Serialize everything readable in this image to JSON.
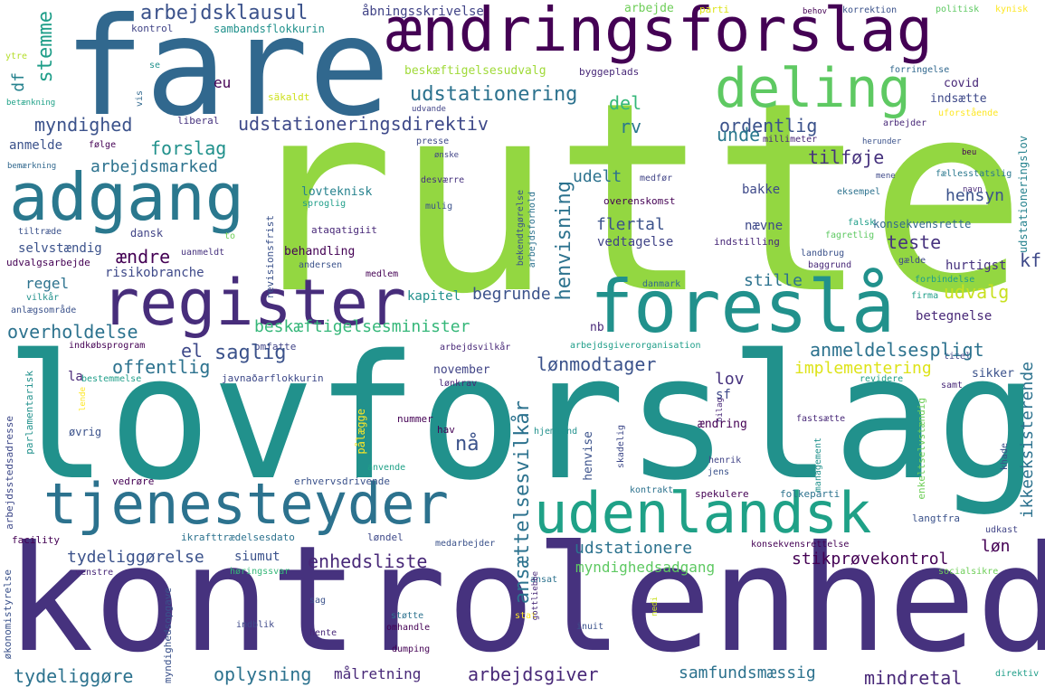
{
  "words": [
    {
      "text": "rutte",
      "color": "#93d741"
    },
    {
      "text": "lovforslag",
      "color": "#21918c"
    },
    {
      "text": "kontrolenhed",
      "color": "#46327e"
    },
    {
      "text": "fare",
      "color": "#31688e"
    },
    {
      "text": "ændringsforslag",
      "color": "#440154"
    },
    {
      "text": "deling",
      "color": "#5ec962"
    },
    {
      "text": "adgang",
      "color": "#2a788e"
    },
    {
      "text": "register",
      "color": "#472d7b"
    },
    {
      "text": "foreslå",
      "color": "#21918c"
    },
    {
      "text": "tjenesteyder",
      "color": "#2c728e"
    },
    {
      "text": "udenlandsk",
      "color": "#1fa187"
    },
    {
      "text": "arbejdsklausul",
      "color": "#3b528b"
    },
    {
      "text": "åbningsskrivelse",
      "color": "#414487"
    },
    {
      "text": "arbejde",
      "color": "#6ece58"
    },
    {
      "text": "parti",
      "color": "#dde318"
    },
    {
      "text": "behov",
      "color": "#440154"
    },
    {
      "text": "korrektion",
      "color": "#3b528b"
    },
    {
      "text": "politisk",
      "color": "#5ec962"
    },
    {
      "text": "kynisk",
      "color": "#fde725"
    },
    {
      "text": "kontrol",
      "color": "#414487"
    },
    {
      "text": "sambandsflokkurin",
      "color": "#21918c"
    },
    {
      "text": "stemme",
      "color": "#1f9e89"
    },
    {
      "text": "beskæftigelsesudvalg",
      "color": "#a0da39"
    },
    {
      "text": "byggeplads",
      "color": "#482878"
    },
    {
      "text": "forringelse",
      "color": "#31688e"
    },
    {
      "text": "ytre",
      "color": "#b5de2b"
    },
    {
      "text": "se",
      "color": "#21918c"
    },
    {
      "text": "eu",
      "color": "#440154"
    },
    {
      "text": "udstationering",
      "color": "#2c728e"
    },
    {
      "text": "covid",
      "color": "#482878"
    },
    {
      "text": "df",
      "color": "#26828e"
    },
    {
      "text": "myndighed",
      "color": "#3b528b"
    },
    {
      "text": "del",
      "color": "#35b779"
    },
    {
      "text": "indsætte",
      "color": "#3e4989"
    },
    {
      "text": "betænkning",
      "color": "#1fa187"
    },
    {
      "text": "vis",
      "color": "#31688e"
    },
    {
      "text": "säkaldt",
      "color": "#cde11d"
    },
    {
      "text": "udvande",
      "color": "#414487"
    },
    {
      "text": "uforstående",
      "color": "#fde725"
    },
    {
      "text": "liberal",
      "color": "#46327e"
    },
    {
      "text": "udstationeringsdirektiv",
      "color": "#3e4989"
    },
    {
      "text": "ordentlig",
      "color": "#3b528b"
    },
    {
      "text": "arbejder",
      "color": "#482878"
    },
    {
      "text": "rv",
      "color": "#2a788e"
    },
    {
      "text": "anmelde",
      "color": "#3b528b"
    },
    {
      "text": "følge",
      "color": "#440154"
    },
    {
      "text": "forslag",
      "color": "#21918c"
    },
    {
      "text": "presse",
      "color": "#3e4989"
    },
    {
      "text": "ønske",
      "color": "#414487"
    },
    {
      "text": "millimeter",
      "color": "#482878"
    },
    {
      "text": "unde",
      "color": "#2a788e"
    },
    {
      "text": "herunder",
      "color": "#3b528b"
    },
    {
      "text": "bemærkning",
      "color": "#31688e"
    },
    {
      "text": "udstationeringslov",
      "color": "#26828e"
    },
    {
      "text": "tilføje",
      "color": "#46327e"
    },
    {
      "text": "arbejdsmarked",
      "color": "#2c728e"
    },
    {
      "text": "beu",
      "color": "#440154"
    },
    {
      "text": "fællesstatslig",
      "color": "#2a788e"
    },
    {
      "text": "udelt",
      "color": "#2c728e"
    },
    {
      "text": "medfør",
      "color": "#414487"
    },
    {
      "text": "desværre",
      "color": "#46327e"
    },
    {
      "text": "mene",
      "color": "#3e4989"
    },
    {
      "text": "navn",
      "color": "#482878"
    },
    {
      "text": "lovteknisk",
      "color": "#26828e"
    },
    {
      "text": "bakke",
      "color": "#3e4989"
    },
    {
      "text": "eksempel",
      "color": "#2c728e"
    },
    {
      "text": "sproglig",
      "color": "#1f9e89"
    },
    {
      "text": "mulig",
      "color": "#3b528b"
    },
    {
      "text": "overenskomst",
      "color": "#440154"
    },
    {
      "text": "hensyn",
      "color": "#3b528b"
    },
    {
      "text": "tiltræde",
      "color": "#3b528b"
    },
    {
      "text": "ataqatigiit",
      "color": "#482878"
    },
    {
      "text": "konsekvensrette",
      "color": "#31688e"
    },
    {
      "text": "selvstændig",
      "color": "#3b528b"
    },
    {
      "text": "dansk",
      "color": "#414487"
    },
    {
      "text": "flertal",
      "color": "#3b528b"
    },
    {
      "text": "falsk",
      "color": "#1f9e89"
    },
    {
      "text": "fagretlig",
      "color": "#5ec962"
    },
    {
      "text": "to",
      "color": "#6ece58"
    },
    {
      "text": "udvalgsarbejde",
      "color": "#440154"
    },
    {
      "text": "uanmeldt",
      "color": "#46327e"
    },
    {
      "text": "behandling",
      "color": "#440154"
    },
    {
      "text": "vedtagelse",
      "color": "#414487"
    },
    {
      "text": "nævne",
      "color": "#3e4989"
    },
    {
      "text": "indstilling",
      "color": "#482878"
    },
    {
      "text": "teste",
      "color": "#46327e"
    },
    {
      "text": "ændre",
      "color": "#440154"
    },
    {
      "text": "risikobranche",
      "color": "#3e4989"
    },
    {
      "text": "andersen",
      "color": "#3b528b"
    },
    {
      "text": "baggrund",
      "color": "#482878"
    },
    {
      "text": "gælde",
      "color": "#3e4989"
    },
    {
      "text": "landbrug",
      "color": "#3b528b"
    },
    {
      "text": "kf",
      "color": "#3e4989"
    },
    {
      "text": "regel",
      "color": "#2c728e"
    },
    {
      "text": "medlem",
      "color": "#440154"
    },
    {
      "text": "hurtigst",
      "color": "#46327e"
    },
    {
      "text": "forbindelse",
      "color": "#1f9e89"
    },
    {
      "text": "vilkår",
      "color": "#21918c"
    },
    {
      "text": "danmark",
      "color": "#31688e"
    },
    {
      "text": "stille",
      "color": "#2c728e"
    },
    {
      "text": "firma",
      "color": "#1f9e89"
    },
    {
      "text": "anlægsområde",
      "color": "#3b528b"
    },
    {
      "text": "kapitel",
      "color": "#21918c"
    },
    {
      "text": "begrunde",
      "color": "#3b528b"
    },
    {
      "text": "udvalg",
      "color": "#c8e020"
    },
    {
      "text": "beskæftigelsesminister",
      "color": "#35b779"
    },
    {
      "text": "nb",
      "color": "#482878"
    },
    {
      "text": "betegnelse",
      "color": "#482878"
    },
    {
      "text": "overholdelse",
      "color": "#2c728e"
    },
    {
      "text": "indkøbsprogram",
      "color": "#440154"
    },
    {
      "text": "omfatte",
      "color": "#414487"
    },
    {
      "text": "arbejdsvilkår",
      "color": "#482878"
    },
    {
      "text": "arbejdsgiverorganisation",
      "color": "#1f9e89"
    },
    {
      "text": "titel",
      "color": "#414487"
    },
    {
      "text": "el",
      "color": "#3e4989"
    },
    {
      "text": "saglig",
      "color": "#3b528b"
    },
    {
      "text": "anmeldelsespligt",
      "color": "#2c728e"
    },
    {
      "text": "offentlig",
      "color": "#2c728e"
    },
    {
      "text": "lønmodtager",
      "color": "#3b528b"
    },
    {
      "text": "implementering",
      "color": "#dde318"
    },
    {
      "text": "javnaðarflokkurin",
      "color": "#3e4989"
    },
    {
      "text": "la",
      "color": "#482878"
    },
    {
      "text": "november",
      "color": "#414487"
    },
    {
      "text": "lov",
      "color": "#46327e"
    },
    {
      "text": "sikker",
      "color": "#3b528b"
    },
    {
      "text": "revidere",
      "color": "#1fa187"
    },
    {
      "text": "bestemmelse",
      "color": "#1f9e89"
    },
    {
      "text": "lønkrav",
      "color": "#482878"
    },
    {
      "text": "sf",
      "color": "#3e4989"
    },
    {
      "text": "samt",
      "color": "#482878"
    },
    {
      "text": "nummer",
      "color": "#440154"
    },
    {
      "text": "nå",
      "color": "#3b528b"
    },
    {
      "text": "hav",
      "color": "#440154"
    },
    {
      "text": "ændring",
      "color": "#440154"
    },
    {
      "text": "fastsætte",
      "color": "#482878"
    },
    {
      "text": "øvrig",
      "color": "#3b528b"
    },
    {
      "text": "hjemland",
      "color": "#21918c"
    },
    {
      "text": "pålægge",
      "color": "#fde725"
    },
    {
      "text": "henrik",
      "color": "#414487"
    },
    {
      "text": "jens",
      "color": "#3b528b"
    },
    {
      "text": "anvende",
      "color": "#1fa187"
    },
    {
      "text": "vedrøre",
      "color": "#440154"
    },
    {
      "text": "erhvervsdrivende",
      "color": "#3b528b"
    },
    {
      "text": "spekulere",
      "color": "#440154"
    },
    {
      "text": "folkeparti",
      "color": "#2c728e"
    },
    {
      "text": "kontrakt",
      "color": "#2c728e"
    },
    {
      "text": "langtfra",
      "color": "#3b528b"
    },
    {
      "text": "udstationere",
      "color": "#2c728e"
    },
    {
      "text": "facility",
      "color": "#440154"
    },
    {
      "text": "ikrafttrædelsesdato",
      "color": "#2c728e"
    },
    {
      "text": "løndel",
      "color": "#3e4989"
    },
    {
      "text": "medarbejder",
      "color": "#3b528b"
    },
    {
      "text": "konsekvensrettelse",
      "color": "#440154"
    },
    {
      "text": "udkast",
      "color": "#414487"
    },
    {
      "text": "løn",
      "color": "#440154"
    },
    {
      "text": "tydeliggørelse",
      "color": "#3b528b"
    },
    {
      "text": "siumut",
      "color": "#3b528b"
    },
    {
      "text": "enhedsliste",
      "color": "#482878"
    },
    {
      "text": "myndighedsadgang",
      "color": "#5ec962"
    },
    {
      "text": "stikprøvekontrol",
      "color": "#440154"
    },
    {
      "text": "venstre",
      "color": "#482878"
    },
    {
      "text": "høringssvar",
      "color": "#35b779"
    },
    {
      "text": "socialsikre",
      "color": "#6ece58"
    },
    {
      "text": "ansat",
      "color": "#2c728e"
    },
    {
      "text": "sag",
      "color": "#3b528b"
    },
    {
      "text": "støtte",
      "color": "#2c728e"
    },
    {
      "text": "omhandle",
      "color": "#440154"
    },
    {
      "text": "inuit",
      "color": "#3b528b"
    },
    {
      "text": "stat",
      "color": "#fde725"
    },
    {
      "text": "indblik",
      "color": "#3e4989"
    },
    {
      "text": "hente",
      "color": "#482878"
    },
    {
      "text": "dumping",
      "color": "#440154"
    },
    {
      "text": "tydeliggøre",
      "color": "#2c728e"
    },
    {
      "text": "oplysning",
      "color": "#2c728e"
    },
    {
      "text": "målretning",
      "color": "#482878"
    },
    {
      "text": "arbejdsgiver",
      "color": "#482878"
    },
    {
      "text": "samfundsmæssig",
      "color": "#2c728e"
    },
    {
      "text": "mindretal",
      "color": "#482878"
    },
    {
      "text": "direktiv",
      "color": "#1f9e89"
    },
    {
      "text": "ansættelsesvilkår",
      "color": "#2c728e"
    },
    {
      "text": "henvisning",
      "color": "#2c728e"
    },
    {
      "text": "ikkeeksisterende",
      "color": "#2c728e"
    },
    {
      "text": "revisionsfrist",
      "color": "#3b528b"
    },
    {
      "text": "bekendtgørelse",
      "color": "#3b528b"
    },
    {
      "text": "arbejdsforhold",
      "color": "#2c728e"
    },
    {
      "text": "parlamentarisk",
      "color": "#21918c"
    },
    {
      "text": "arbejdsstedsadresse",
      "color": "#3e4989"
    },
    {
      "text": "økonomistyrelse",
      "color": "#3b528b"
    },
    {
      "text": "myndighedsopgave",
      "color": "#3b528b"
    },
    {
      "text": "management",
      "color": "#21918c"
    },
    {
      "text": "enkeltselvstændig",
      "color": "#6ece58"
    },
    {
      "text": "gottliebbe",
      "color": "#482878"
    },
    {
      "text": "henvise",
      "color": "#3b528b"
    },
    {
      "text": "skadelig",
      "color": "#3e4989"
    },
    {
      "text": "bilag",
      "color": "#482878"
    },
    {
      "text": "khade",
      "color": "#3b528b"
    },
    {
      "text": "nedi",
      "color": "#c8e020"
    },
    {
      "text": "lende",
      "color": "#fde725"
    },
    {
      "text": "ledelsesteam",
      "color": "#414487"
    },
    {
      "text": "uanmeldte",
      "color": "#3b528b"
    },
    {
      "text": "ordblind",
      "color": "#21918c"
    },
    {
      "text": "afskaffe",
      "color": "#482878"
    },
    {
      "text": "samlet",
      "color": "#2c728e"
    }
  ]
}
